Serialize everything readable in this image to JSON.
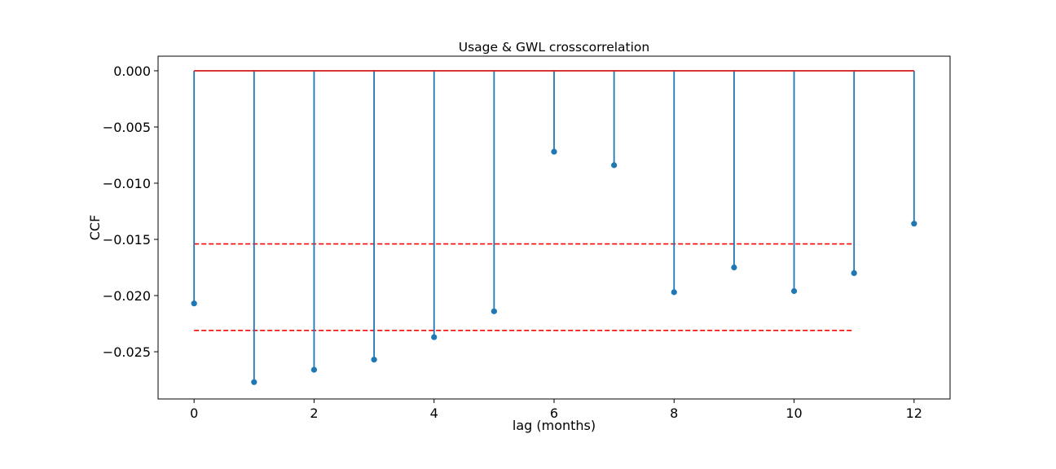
{
  "chart_data": {
    "type": "stem",
    "title": "Usage & GWL crosscorrelation",
    "xlabel": "lag (months)",
    "ylabel": "CCF",
    "xlim": [
      -0.6,
      12.6
    ],
    "ylim": [
      -0.0292,
      0.0013
    ],
    "xticks": [
      0,
      2,
      4,
      6,
      8,
      10,
      12
    ],
    "yticks": [
      0.0,
      -0.005,
      -0.01,
      -0.015,
      -0.02,
      -0.025
    ],
    "ytick_labels": [
      "0.000",
      "−0.005",
      "−0.010",
      "−0.015",
      "−0.020",
      "−0.025"
    ],
    "x": [
      0,
      1,
      2,
      3,
      4,
      5,
      6,
      7,
      8,
      9,
      10,
      11,
      12
    ],
    "values": [
      -0.0207,
      -0.0277,
      -0.0266,
      -0.0257,
      -0.0237,
      -0.0214,
      -0.0072,
      -0.0084,
      -0.0197,
      -0.0175,
      -0.0196,
      -0.018,
      -0.0136
    ],
    "baseline": 0.0,
    "reference_lines": [
      {
        "y": -0.0154,
        "x_from": 0,
        "x_to": 11,
        "style": "dashed"
      },
      {
        "y": -0.0231,
        "x_from": 0,
        "x_to": 11,
        "style": "dashed"
      }
    ],
    "grid": false,
    "colors": {
      "stem": "#1f77b4",
      "baseline": "#d62728",
      "reference": "#ff0000",
      "axes": "#000000"
    }
  }
}
